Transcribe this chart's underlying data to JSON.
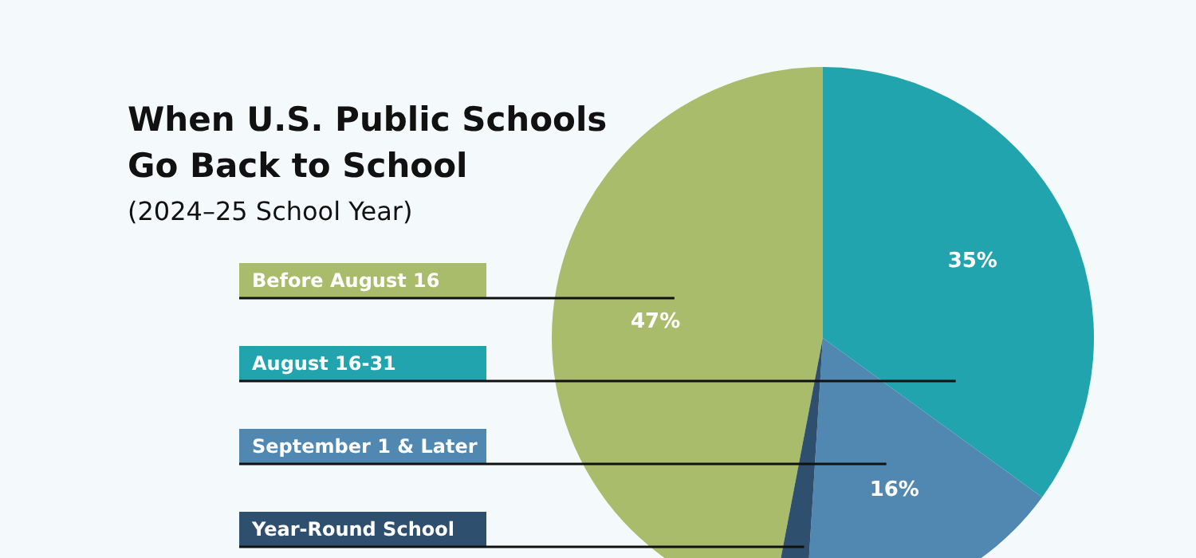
{
  "chart_data": {
    "type": "pie",
    "title": "When U.S. Public Schools Go Back to School",
    "subtitle": "(2024–25 School Year)",
    "categories": [
      "Before August 16",
      "August 16-31",
      "September 1 & Later",
      "Year-Round School"
    ],
    "values": [
      47,
      35,
      16,
      2
    ],
    "colors": [
      "#a9bc6c",
      "#21a4ae",
      "#5088b2",
      "#2f4f6e"
    ],
    "value_labels": [
      "47%",
      "35%",
      "16%",
      null
    ]
  }
}
